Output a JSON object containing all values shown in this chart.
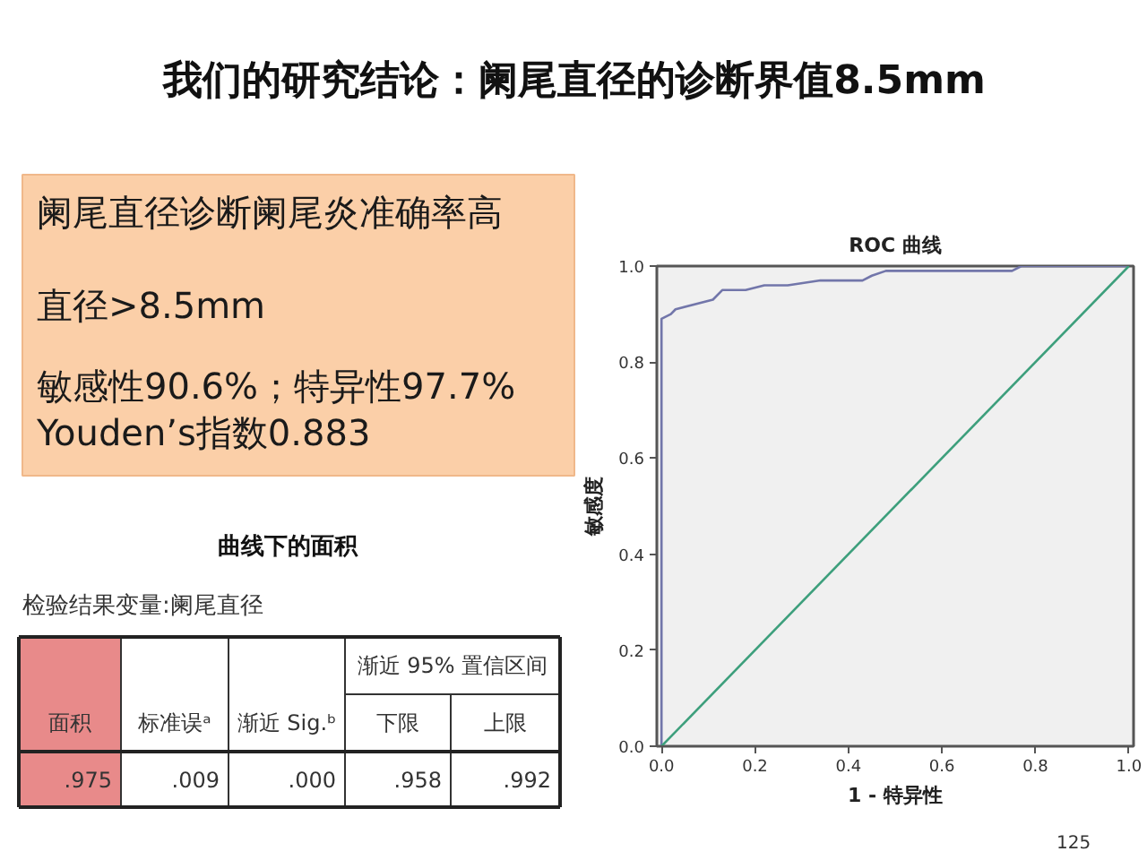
{
  "chart_data": [
    {
      "type": "other",
      "title": "我们的研究结论：阑尾直径的诊断界值8.5mm",
      "annotations": [
        "阑尾直径诊断阑尾炎准确率高",
        "直径>8.5mm",
        "敏感性90.6%；特异性97.7%",
        "Youden’s指数0.883"
      ]
    },
    {
      "type": "other",
      "title": "曲线下的面积",
      "subtitle": "检验结果变量:阑尾直径",
      "categories": [
        "面积",
        "标准误ᵃ",
        "渐近 Sig.ᵇ",
        "下限",
        "上限"
      ],
      "values": [
        0.975,
        0.009,
        0.0,
        0.958,
        0.992
      ],
      "value_labels": [
        ".975",
        ".009",
        ".000",
        ".958",
        ".992"
      ],
      "colors": [
        "#e88a8a",
        null,
        null,
        null,
        null
      ],
      "annotations": [
        "渐近 95% 置信区间"
      ]
    },
    {
      "type": "line",
      "title": "ROC 曲线",
      "xlabel": "1 - 特异性",
      "ylabel": "敏感度",
      "xlim": [
        -0.01,
        1.01
      ],
      "ylim": [
        0,
        1
      ],
      "xticks": [
        {
          "value": 0,
          "label": "0.0"
        },
        {
          "value": 0.2,
          "label": "0.2"
        },
        {
          "value": 0.4,
          "label": "0.4"
        },
        {
          "value": 0.6,
          "label": "0.6"
        },
        {
          "value": 0.8,
          "label": "0.8"
        },
        {
          "value": 1,
          "label": "1.0"
        }
      ],
      "yticks": [
        {
          "value": 0,
          "label": "0.0"
        },
        {
          "value": 0.2,
          "label": "0.2"
        },
        {
          "value": 0.4,
          "label": "0.4"
        },
        {
          "value": 0.6,
          "label": "0.6"
        },
        {
          "value": 0.8,
          "label": "0.8"
        },
        {
          "value": 1,
          "label": "1.0"
        }
      ],
      "series": [
        {
          "color": "#7276aa",
          "x": [
            0,
            0,
            0.02,
            0.03,
            0.11,
            0.13,
            0.18,
            0.22,
            0.27,
            0.34,
            0.43,
            0.45,
            0.48,
            0.75,
            0.77,
            1
          ],
          "values": [
            0,
            0.89,
            0.9,
            0.91,
            0.93,
            0.95,
            0.95,
            0.96,
            0.96,
            0.97,
            0.97,
            0.98,
            0.99,
            0.99,
            1,
            1
          ]
        },
        {
          "color": "#3d9f7c",
          "x": [
            0,
            1
          ],
          "values": [
            0,
            1
          ]
        }
      ],
      "annotations": [
        "125"
      ]
    }
  ]
}
